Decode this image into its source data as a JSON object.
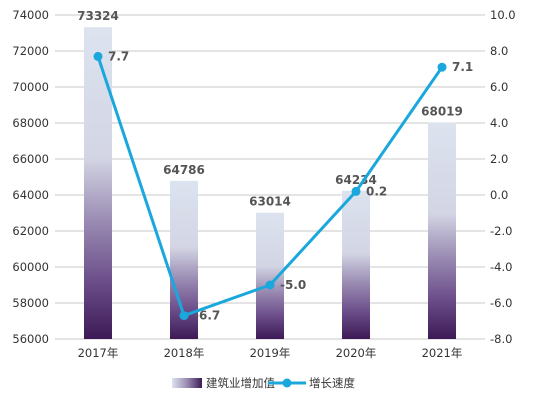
{
  "chart_data": {
    "type": "bar",
    "categories": [
      "2017年",
      "2018年",
      "2019年",
      "2020年",
      "2021年"
    ],
    "series": [
      {
        "name": "建筑业增加值",
        "type": "bar",
        "axis": "left",
        "values": [
          73324,
          64786,
          63014,
          64234,
          68019
        ],
        "labels": [
          "73324",
          "64786",
          "63014",
          "64234",
          "68019"
        ]
      },
      {
        "name": "增长速度",
        "type": "line",
        "axis": "right",
        "values": [
          7.7,
          -6.7,
          -5.0,
          0.2,
          7.1
        ],
        "labels": [
          "7.7",
          "-6.7",
          "-5.0",
          "0.2",
          "7.1"
        ]
      }
    ],
    "y_left": {
      "ylim": [
        56000,
        74000
      ],
      "ticks": [
        "56000",
        "58000",
        "60000",
        "62000",
        "64000",
        "66000",
        "68000",
        "70000",
        "72000",
        "74000"
      ]
    },
    "y_right": {
      "ylim": [
        -8.0,
        10.0
      ],
      "ticks": [
        "-8.0",
        "-6.0",
        "-4.0",
        "-2.0",
        "0.0",
        "2.0",
        "4.0",
        "6.0",
        "8.0",
        "10.0"
      ]
    },
    "grid": true,
    "legend": "bottom-center",
    "colors": {
      "bar_top": "#dce3ef",
      "bar_bottom": "#3d1a55",
      "line": "#1aa7dc",
      "grid": "#c8c8c8"
    }
  }
}
